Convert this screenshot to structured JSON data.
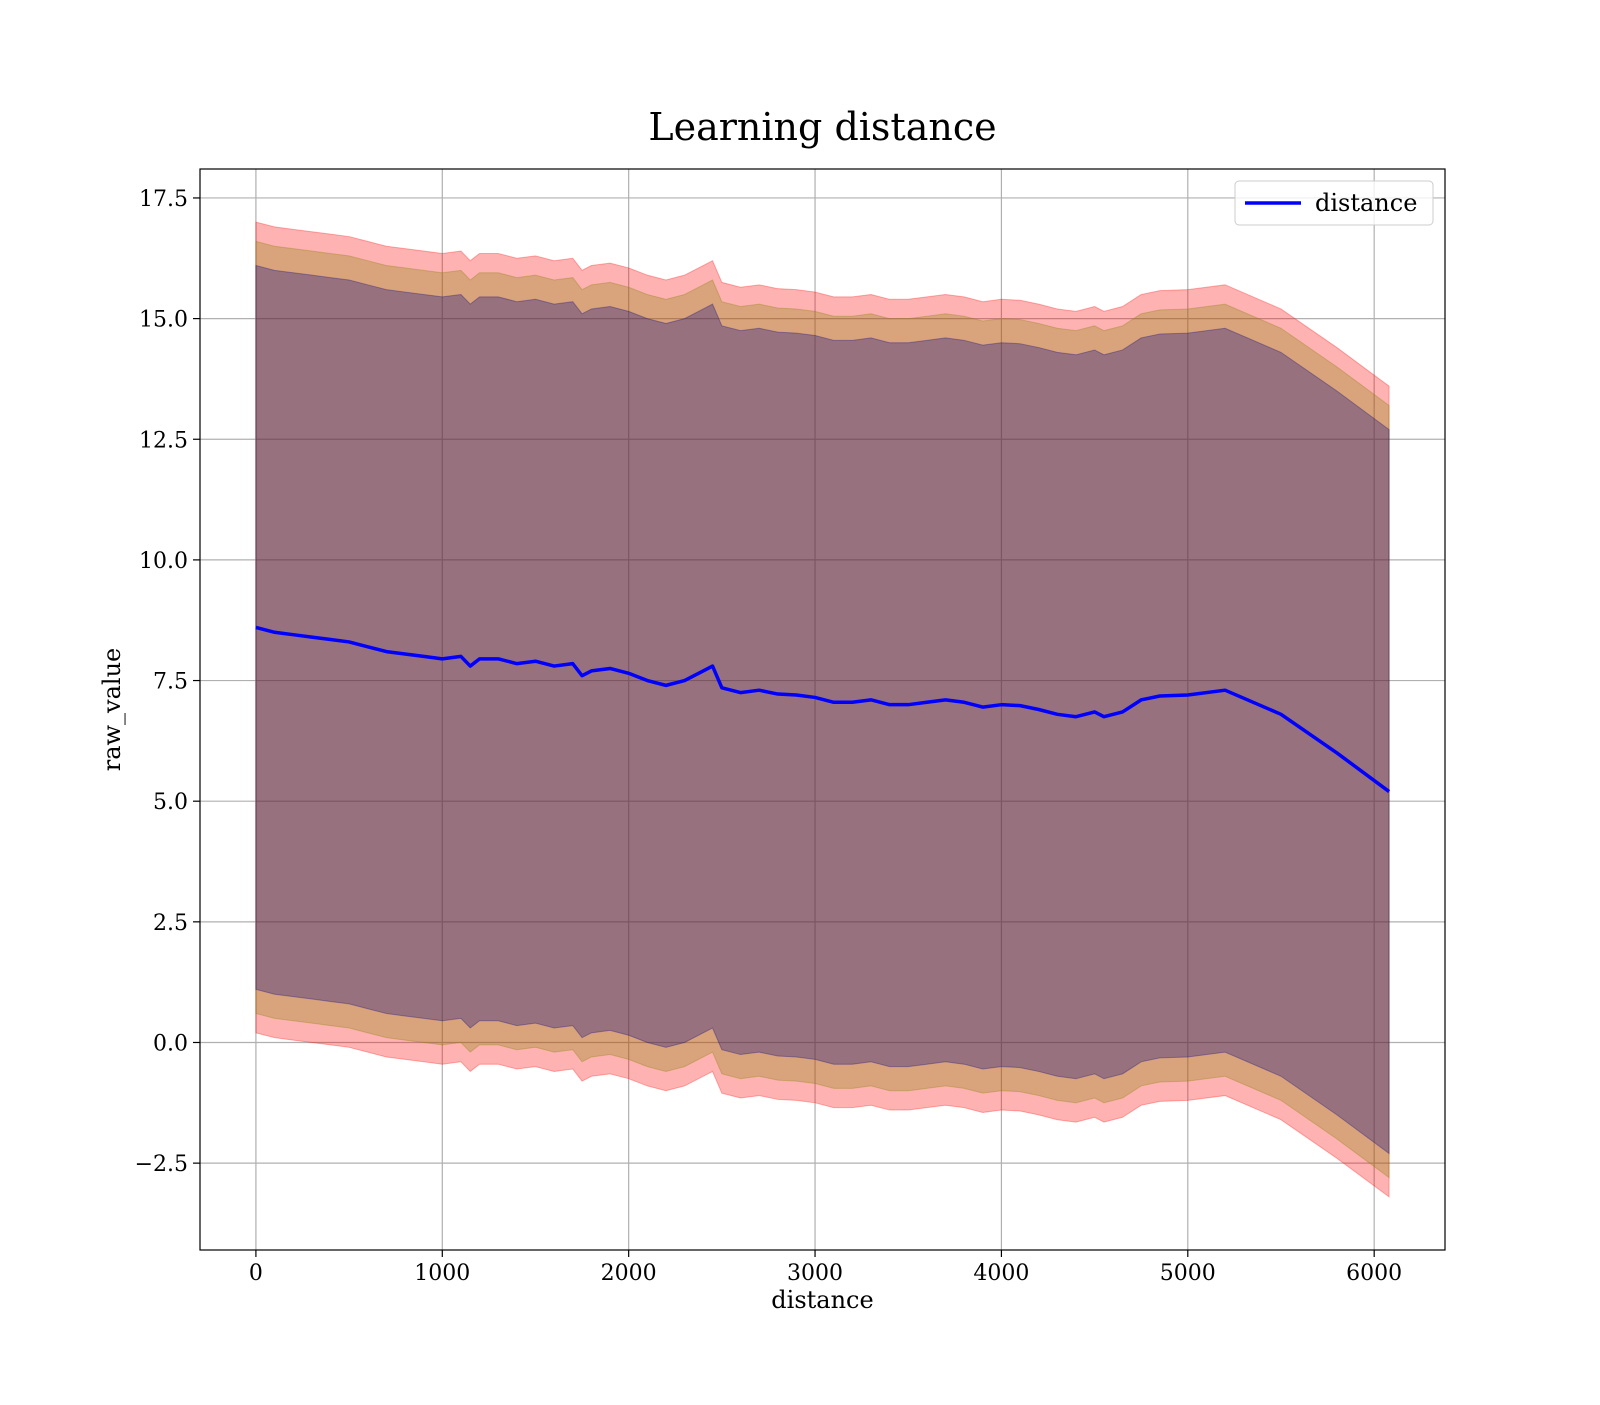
{
  "chart_data": {
    "type": "line",
    "title": "Learning distance",
    "xlabel": "distance",
    "ylabel": "raw_value",
    "xlim": [
      -300,
      6380
    ],
    "ylim": [
      -4.3,
      18.1
    ],
    "grid": true,
    "legend_position": "top-right",
    "x_ticks": [
      0,
      1000,
      2000,
      3000,
      4000,
      5000,
      6000
    ],
    "x_tick_labels": [
      "0",
      "1000",
      "2000",
      "3000",
      "4000",
      "5000",
      "6000"
    ],
    "y_ticks": [
      -2.5,
      0.0,
      2.5,
      5.0,
      7.5,
      10.0,
      12.5,
      15.0,
      17.5
    ],
    "y_tick_labels": [
      "−2.5",
      "0.0",
      "2.5",
      "5.0",
      "7.5",
      "10.0",
      "12.5",
      "15.0",
      "17.5"
    ],
    "x": [
      0,
      100,
      200,
      300,
      400,
      500,
      600,
      700,
      800,
      900,
      1000,
      1100,
      1150,
      1200,
      1300,
      1400,
      1500,
      1600,
      1700,
      1750,
      1800,
      1900,
      2000,
      2100,
      2200,
      2300,
      2400,
      2450,
      2500,
      2600,
      2700,
      2800,
      2900,
      3000,
      3100,
      3200,
      3300,
      3400,
      3500,
      3600,
      3700,
      3800,
      3900,
      4000,
      4100,
      4200,
      4300,
      4400,
      4500,
      4550,
      4650,
      4750,
      4850,
      5000,
      5200,
      5500,
      5800,
      6080
    ],
    "series": [
      {
        "name": "distance",
        "color": "#0000ff",
        "values": [
          8.6,
          8.5,
          8.45,
          8.4,
          8.35,
          8.3,
          8.2,
          8.1,
          8.05,
          8.0,
          7.95,
          8.0,
          7.8,
          7.95,
          7.95,
          7.85,
          7.9,
          7.8,
          7.85,
          7.6,
          7.7,
          7.75,
          7.65,
          7.5,
          7.4,
          7.5,
          7.7,
          7.8,
          7.35,
          7.25,
          7.3,
          7.22,
          7.2,
          7.15,
          7.05,
          7.05,
          7.1,
          7.0,
          7.0,
          7.05,
          7.1,
          7.05,
          6.95,
          7.0,
          6.98,
          6.9,
          6.8,
          6.75,
          6.85,
          6.75,
          6.85,
          7.1,
          7.18,
          7.2,
          7.3,
          6.8,
          6.0,
          5.2
        ]
      }
    ],
    "bands": [
      {
        "name": "band-outer",
        "color": "#ff0000",
        "opacity": 0.3,
        "offset": 8.4
      },
      {
        "name": "band-middle",
        "color": "#808000",
        "opacity": 0.3,
        "offset": 8.0
      },
      {
        "name": "band-inner",
        "color": "#000080",
        "opacity": 0.3,
        "offset": 7.5
      }
    ]
  }
}
